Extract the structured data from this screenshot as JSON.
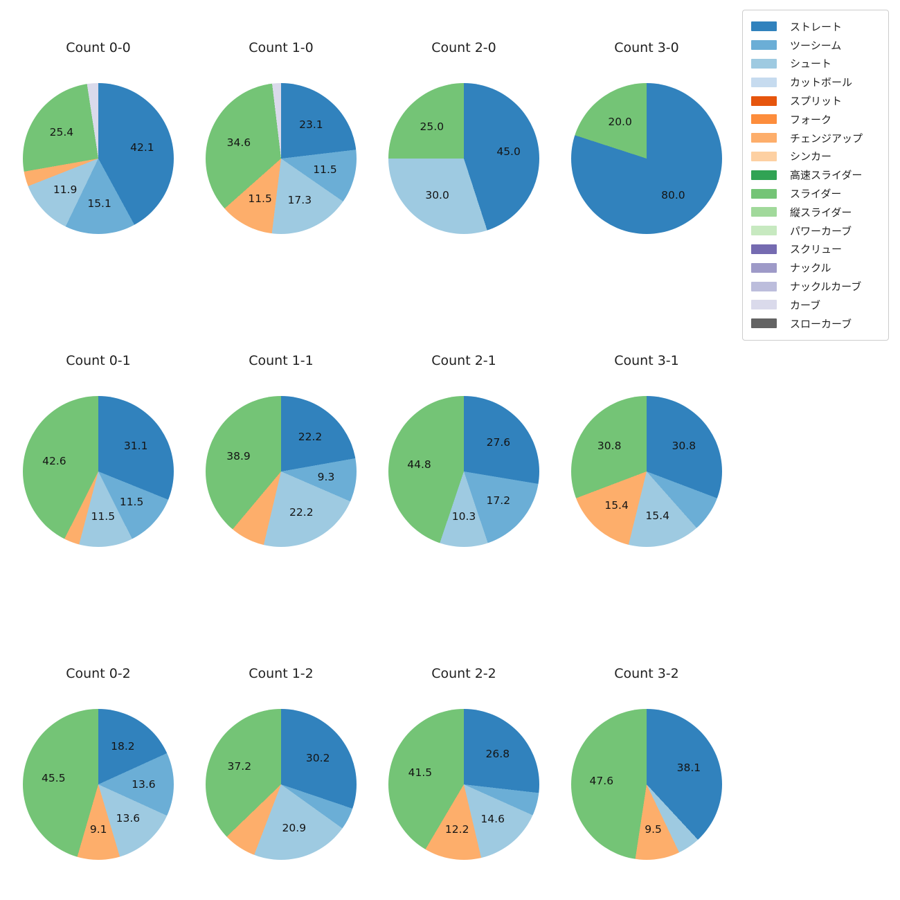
{
  "legend": {
    "items": [
      {
        "label": "ストレート",
        "color": "#3182bd"
      },
      {
        "label": "ツーシーム",
        "color": "#6baed6"
      },
      {
        "label": "シュート",
        "color": "#9ecae1"
      },
      {
        "label": "カットボール",
        "color": "#c6dbef"
      },
      {
        "label": "スプリット",
        "color": "#e6550d"
      },
      {
        "label": "フォーク",
        "color": "#fd8d3c"
      },
      {
        "label": "チェンジアップ",
        "color": "#fdae6b"
      },
      {
        "label": "シンカー",
        "color": "#fdd0a2"
      },
      {
        "label": "高速スライダー",
        "color": "#31a354"
      },
      {
        "label": "スライダー",
        "color": "#74c476"
      },
      {
        "label": "縦スライダー",
        "color": "#a1d99b"
      },
      {
        "label": "パワーカーブ",
        "color": "#c7e9c0"
      },
      {
        "label": "スクリュー",
        "color": "#756bb1"
      },
      {
        "label": "ナックル",
        "color": "#9e9ac8"
      },
      {
        "label": "ナックルカーブ",
        "color": "#bcbddc"
      },
      {
        "label": "カーブ",
        "color": "#dadaeb"
      },
      {
        "label": "スローカーブ",
        "color": "#636363"
      }
    ]
  },
  "chart_data": [
    {
      "type": "pie",
      "title": "Count 0-0",
      "start_angle_deg": 0,
      "direction": "clockwise",
      "slices": [
        {
          "label": "ストレート",
          "value": 42.1,
          "color": "#3182bd",
          "value_label": "42.1"
        },
        {
          "label": "ツーシーム",
          "value": 15.1,
          "color": "#6baed6",
          "value_label": "15.1"
        },
        {
          "label": "シュート",
          "value": 11.9,
          "color": "#9ecae1",
          "value_label": "11.9"
        },
        {
          "label": "チェンジアップ",
          "value": 3.2,
          "color": "#fdae6b",
          "value_label": ""
        },
        {
          "label": "スライダー",
          "value": 25.4,
          "color": "#74c476",
          "value_label": "25.4"
        },
        {
          "label": "カーブ",
          "value": 2.4,
          "color": "#dadaeb",
          "value_label": ""
        }
      ]
    },
    {
      "type": "pie",
      "title": "Count 1-0",
      "start_angle_deg": 0,
      "direction": "clockwise",
      "slices": [
        {
          "label": "ストレート",
          "value": 23.1,
          "color": "#3182bd",
          "value_label": "23.1"
        },
        {
          "label": "ツーシーム",
          "value": 11.5,
          "color": "#6baed6",
          "value_label": "11.5"
        },
        {
          "label": "シュート",
          "value": 17.3,
          "color": "#9ecae1",
          "value_label": "17.3"
        },
        {
          "label": "チェンジアップ",
          "value": 11.5,
          "color": "#fdae6b",
          "value_label": "11.5"
        },
        {
          "label": "スライダー",
          "value": 34.6,
          "color": "#74c476",
          "value_label": "34.6"
        },
        {
          "label": "カーブ",
          "value": 1.9,
          "color": "#dadaeb",
          "value_label": ""
        }
      ]
    },
    {
      "type": "pie",
      "title": "Count 2-0",
      "start_angle_deg": 0,
      "direction": "clockwise",
      "slices": [
        {
          "label": "ストレート",
          "value": 45.0,
          "color": "#3182bd",
          "value_label": "45.0"
        },
        {
          "label": "シュート",
          "value": 30.0,
          "color": "#9ecae1",
          "value_label": "30.0"
        },
        {
          "label": "スライダー",
          "value": 25.0,
          "color": "#74c476",
          "value_label": "25.0"
        }
      ]
    },
    {
      "type": "pie",
      "title": "Count 3-0",
      "start_angle_deg": 0,
      "direction": "clockwise",
      "slices": [
        {
          "label": "ストレート",
          "value": 80.0,
          "color": "#3182bd",
          "value_label": "80.0"
        },
        {
          "label": "スライダー",
          "value": 20.0,
          "color": "#74c476",
          "value_label": "20.0"
        }
      ]
    },
    {
      "type": "pie",
      "title": "Count 0-1",
      "start_angle_deg": 0,
      "direction": "clockwise",
      "slices": [
        {
          "label": "ストレート",
          "value": 31.1,
          "color": "#3182bd",
          "value_label": "31.1"
        },
        {
          "label": "ツーシーム",
          "value": 11.5,
          "color": "#6baed6",
          "value_label": "11.5"
        },
        {
          "label": "シュート",
          "value": 11.5,
          "color": "#9ecae1",
          "value_label": "11.5"
        },
        {
          "label": "チェンジアップ",
          "value": 3.3,
          "color": "#fdae6b",
          "value_label": ""
        },
        {
          "label": "スライダー",
          "value": 42.6,
          "color": "#74c476",
          "value_label": "42.6"
        }
      ]
    },
    {
      "type": "pie",
      "title": "Count 1-1",
      "start_angle_deg": 0,
      "direction": "clockwise",
      "slices": [
        {
          "label": "ストレート",
          "value": 22.2,
          "color": "#3182bd",
          "value_label": "22.2"
        },
        {
          "label": "ツーシーム",
          "value": 9.3,
          "color": "#6baed6",
          "value_label": "9.3"
        },
        {
          "label": "シュート",
          "value": 22.2,
          "color": "#9ecae1",
          "value_label": "22.2"
        },
        {
          "label": "チェンジアップ",
          "value": 7.4,
          "color": "#fdae6b",
          "value_label": ""
        },
        {
          "label": "スライダー",
          "value": 38.9,
          "color": "#74c476",
          "value_label": "38.9"
        }
      ]
    },
    {
      "type": "pie",
      "title": "Count 2-1",
      "start_angle_deg": 0,
      "direction": "clockwise",
      "slices": [
        {
          "label": "ストレート",
          "value": 27.6,
          "color": "#3182bd",
          "value_label": "27.6"
        },
        {
          "label": "ツーシーム",
          "value": 17.2,
          "color": "#6baed6",
          "value_label": "17.2"
        },
        {
          "label": "シュート",
          "value": 10.3,
          "color": "#9ecae1",
          "value_label": "10.3"
        },
        {
          "label": "スライダー",
          "value": 44.8,
          "color": "#74c476",
          "value_label": "44.8"
        }
      ]
    },
    {
      "type": "pie",
      "title": "Count 3-1",
      "start_angle_deg": 0,
      "direction": "clockwise",
      "slices": [
        {
          "label": "ストレート",
          "value": 30.8,
          "color": "#3182bd",
          "value_label": "30.8"
        },
        {
          "label": "ツーシーム",
          "value": 7.7,
          "color": "#6baed6",
          "value_label": ""
        },
        {
          "label": "シュート",
          "value": 15.4,
          "color": "#9ecae1",
          "value_label": "15.4"
        },
        {
          "label": "チェンジアップ",
          "value": 15.4,
          "color": "#fdae6b",
          "value_label": "15.4"
        },
        {
          "label": "スライダー",
          "value": 30.8,
          "color": "#74c476",
          "value_label": "30.8"
        }
      ]
    },
    {
      "type": "pie",
      "title": "Count 0-2",
      "start_angle_deg": 0,
      "direction": "clockwise",
      "slices": [
        {
          "label": "ストレート",
          "value": 18.2,
          "color": "#3182bd",
          "value_label": "18.2"
        },
        {
          "label": "ツーシーム",
          "value": 13.6,
          "color": "#6baed6",
          "value_label": "13.6"
        },
        {
          "label": "シュート",
          "value": 13.6,
          "color": "#9ecae1",
          "value_label": "13.6"
        },
        {
          "label": "チェンジアップ",
          "value": 9.1,
          "color": "#fdae6b",
          "value_label": "9.1"
        },
        {
          "label": "スライダー",
          "value": 45.5,
          "color": "#74c476",
          "value_label": "45.5"
        }
      ]
    },
    {
      "type": "pie",
      "title": "Count 1-2",
      "start_angle_deg": 0,
      "direction": "clockwise",
      "slices": [
        {
          "label": "ストレート",
          "value": 30.2,
          "color": "#3182bd",
          "value_label": "30.2"
        },
        {
          "label": "ツーシーム",
          "value": 4.7,
          "color": "#6baed6",
          "value_label": ""
        },
        {
          "label": "シュート",
          "value": 20.9,
          "color": "#9ecae1",
          "value_label": "20.9"
        },
        {
          "label": "チェンジアップ",
          "value": 7.0,
          "color": "#fdae6b",
          "value_label": ""
        },
        {
          "label": "スライダー",
          "value": 37.2,
          "color": "#74c476",
          "value_label": "37.2"
        }
      ]
    },
    {
      "type": "pie",
      "title": "Count 2-2",
      "start_angle_deg": 0,
      "direction": "clockwise",
      "slices": [
        {
          "label": "ストレート",
          "value": 26.8,
          "color": "#3182bd",
          "value_label": "26.8"
        },
        {
          "label": "ツーシーム",
          "value": 4.9,
          "color": "#6baed6",
          "value_label": ""
        },
        {
          "label": "シュート",
          "value": 14.6,
          "color": "#9ecae1",
          "value_label": "14.6"
        },
        {
          "label": "チェンジアップ",
          "value": 12.2,
          "color": "#fdae6b",
          "value_label": "12.2"
        },
        {
          "label": "スライダー",
          "value": 41.5,
          "color": "#74c476",
          "value_label": "41.5"
        }
      ]
    },
    {
      "type": "pie",
      "title": "Count 3-2",
      "start_angle_deg": 0,
      "direction": "clockwise",
      "slices": [
        {
          "label": "ストレート",
          "value": 38.1,
          "color": "#3182bd",
          "value_label": "38.1"
        },
        {
          "label": "シュート",
          "value": 4.8,
          "color": "#9ecae1",
          "value_label": ""
        },
        {
          "label": "チェンジアップ",
          "value": 9.5,
          "color": "#fdae6b",
          "value_label": "9.5"
        },
        {
          "label": "スライダー",
          "value": 47.6,
          "color": "#74c476",
          "value_label": "47.6"
        }
      ]
    }
  ]
}
